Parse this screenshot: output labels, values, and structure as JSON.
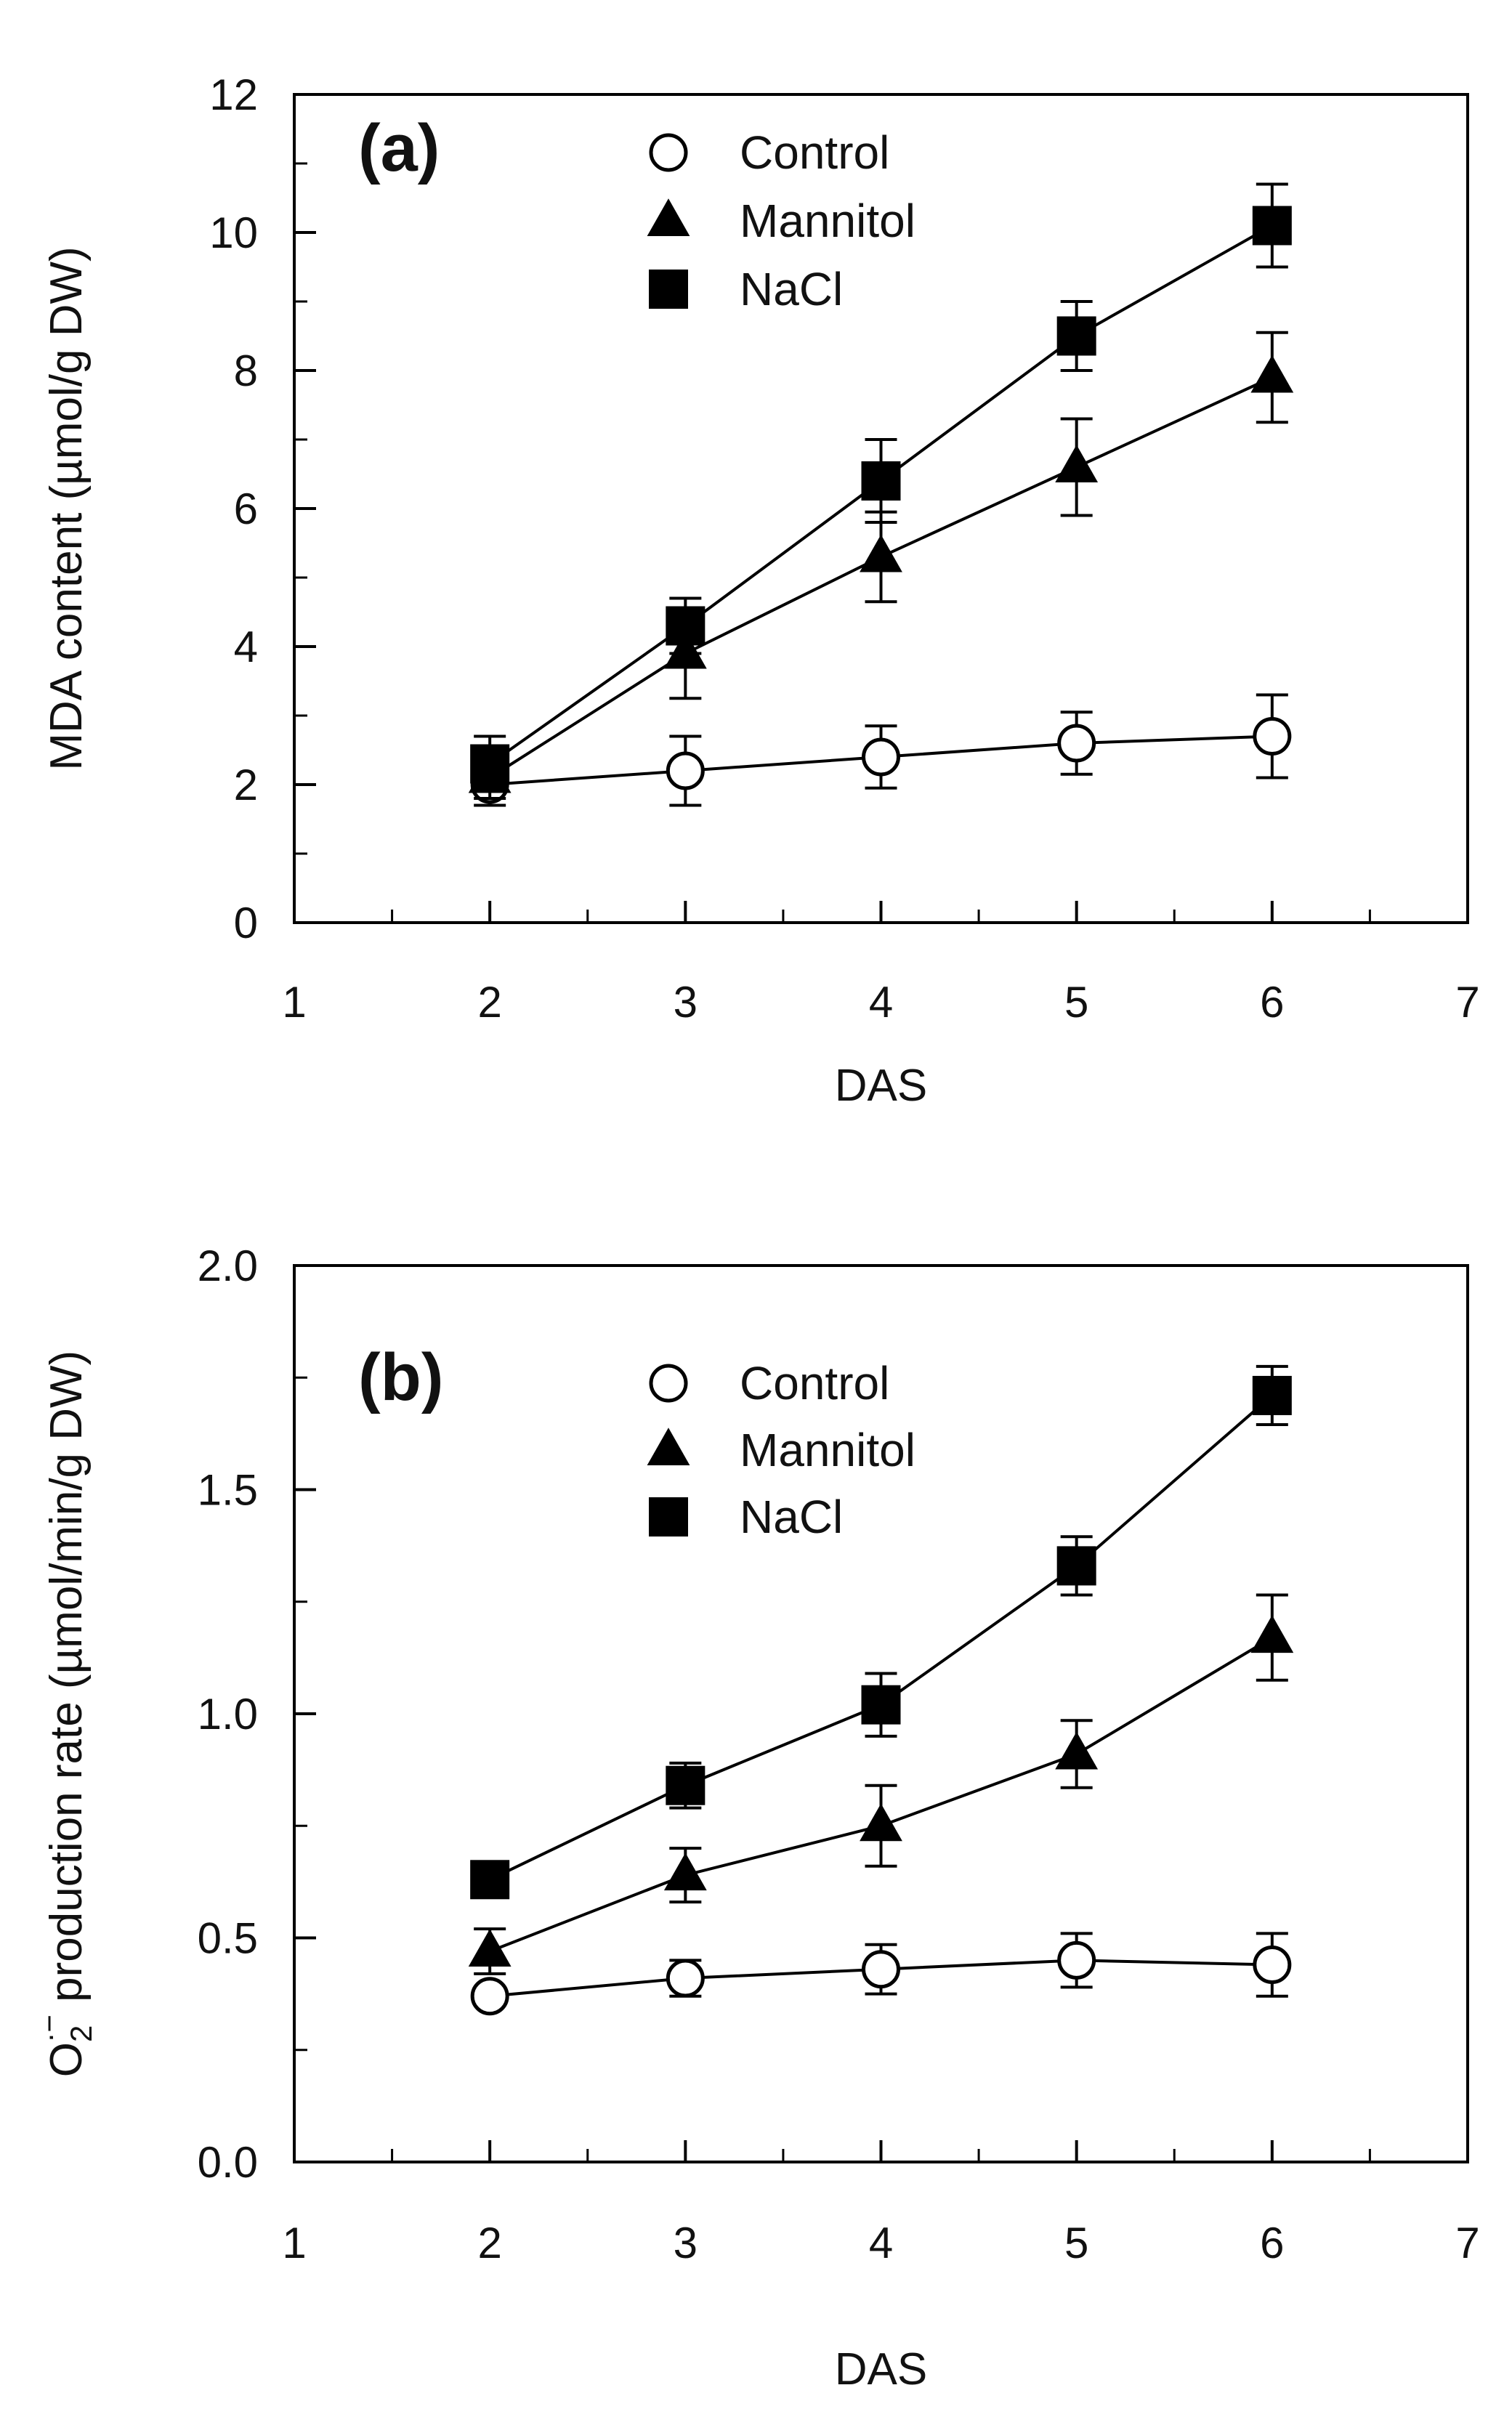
{
  "chart_data": [
    {
      "type": "line",
      "panel_label": "(a)",
      "xlabel": "DAS",
      "ylabel": "MDA content (µmol/g DW)",
      "xlim": [
        1,
        7
      ],
      "ylim": [
        0,
        12
      ],
      "xticks": [
        1,
        2,
        3,
        4,
        5,
        6,
        7
      ],
      "yticks": [
        0,
        2,
        4,
        6,
        8,
        10,
        12
      ],
      "yminor": [
        1,
        3,
        5,
        7,
        9,
        11
      ],
      "legend_position": "top-center",
      "x": [
        2,
        3,
        4,
        5,
        6
      ],
      "series": [
        {
          "name": "Control",
          "marker": "open-circle",
          "values": [
            2.0,
            2.2,
            2.4,
            2.6,
            2.7
          ],
          "errors": [
            0.3,
            0.5,
            0.45,
            0.45,
            0.6
          ]
        },
        {
          "name": "Mannitol",
          "marker": "filled-triangle",
          "values": [
            2.1,
            3.9,
            5.3,
            6.6,
            7.9
          ],
          "errors": [
            0.3,
            0.65,
            0.65,
            0.7,
            0.65
          ]
        },
        {
          "name": "NaCl",
          "marker": "filled-square",
          "values": [
            2.3,
            4.3,
            6.4,
            8.5,
            10.1
          ],
          "errors": [
            0.4,
            0.4,
            0.6,
            0.5,
            0.6
          ]
        }
      ]
    },
    {
      "type": "line",
      "panel_label": "(b)",
      "xlabel": "DAS",
      "ylabel": "O2·− production rate (µmol/min/g DW)",
      "ylabel_parts": {
        "symbol": "O",
        "subscript": "2",
        "superscript": "·−",
        "rest": " production rate (µmol/min/g DW)"
      },
      "xlim": [
        1,
        7
      ],
      "ylim": [
        0,
        2.0
      ],
      "xticks": [
        1,
        2,
        3,
        4,
        5,
        6,
        7
      ],
      "yticks": [
        0.0,
        0.5,
        1.0,
        1.5,
        2.0
      ],
      "ytick_labels": [
        "0.0",
        "0.5",
        "1.0",
        "1.5",
        "2.0"
      ],
      "yminor": [
        0.25,
        0.75,
        1.25,
        1.75
      ],
      "legend_position": "top-center",
      "x": [
        2,
        3,
        4,
        5,
        6
      ],
      "series": [
        {
          "name": "Control",
          "marker": "open-circle",
          "values": [
            0.37,
            0.41,
            0.43,
            0.45,
            0.44
          ],
          "errors": [
            0.02,
            0.04,
            0.055,
            0.06,
            0.07
          ]
        },
        {
          "name": "Mannitol",
          "marker": "filled-triangle",
          "values": [
            0.47,
            0.64,
            0.75,
            0.91,
            1.17
          ],
          "errors": [
            0.05,
            0.06,
            0.09,
            0.075,
            0.095
          ]
        },
        {
          "name": "NaCl",
          "marker": "filled-square",
          "values": [
            0.63,
            0.84,
            1.02,
            1.33,
            1.71
          ],
          "errors": [
            0.025,
            0.05,
            0.07,
            0.065,
            0.065
          ]
        }
      ]
    }
  ]
}
